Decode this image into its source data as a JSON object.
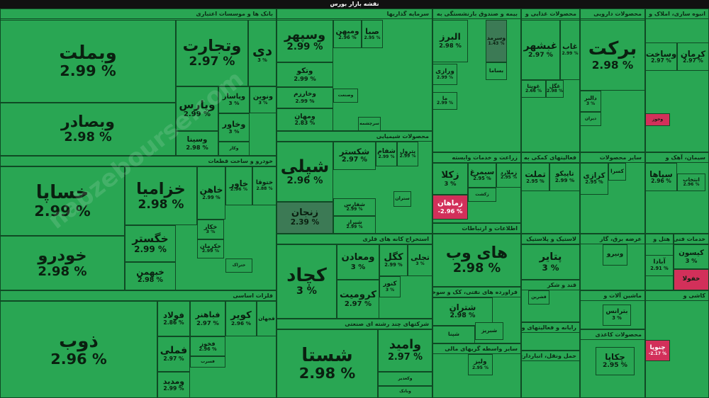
{
  "title": "نقشه بازار بورس",
  "watermark": "nabzebourse.com",
  "sectors": [
    {
      "name": "بانک ها و موسسات اعتباری",
      "tiles": [
        {
          "name": "وبملت",
          "change": "2.99 %"
        },
        {
          "name": "وبصادر",
          "change": "2.98 %"
        },
        {
          "name": "وتجارت",
          "change": "2.97 %"
        },
        {
          "name": "دی",
          "change": "3 %"
        },
        {
          "name": "وپارس",
          "change": "2.99 %"
        },
        {
          "name": "وپاسار",
          "change": "3 %"
        },
        {
          "name": "ونوین",
          "change": "3 %"
        },
        {
          "name": "وخاور",
          "change": "3 %"
        },
        {
          "name": "وسینا",
          "change": "2.98 %"
        },
        {
          "name": "وکار"
        }
      ]
    },
    {
      "name": "خودرو و ساخت قطعات",
      "tiles": [
        {
          "name": "خساپا",
          "change": "2.99 %"
        },
        {
          "name": "خودرو",
          "change": "2.98 %"
        },
        {
          "name": "خزامیا",
          "change": "2.98 %"
        },
        {
          "name": "خگستر",
          "change": "2.99 %"
        },
        {
          "name": "خبهمن",
          "change": "2.98 %"
        },
        {
          "name": "خاهن",
          "change": "2.99 %"
        },
        {
          "name": "خاور",
          "change": "2.96 %"
        },
        {
          "name": "ختوقا",
          "change": "2.88 %"
        },
        {
          "name": "خکار",
          "change": "3 %"
        },
        {
          "name": "خکرمان",
          "change": "2.99 %"
        },
        {
          "name": "ختراک"
        }
      ]
    },
    {
      "name": "فلزات اساسی",
      "tiles": [
        {
          "name": "ذوب",
          "change": "2.96 %"
        },
        {
          "name": "فولاد",
          "change": "2.86 %"
        },
        {
          "name": "فباهنر",
          "change": "2.97 %"
        },
        {
          "name": "کویر",
          "change": "2.96 %"
        },
        {
          "name": "فجهان"
        },
        {
          "name": "فملی",
          "change": "2.97 %"
        },
        {
          "name": "فخوز",
          "change": "2.96 %"
        },
        {
          "name": "فسرب"
        },
        {
          "name": "ومدید",
          "change": "2.99 %"
        }
      ]
    },
    {
      "name": "سرمایه گذاریها",
      "tiles": [
        {
          "name": "وسپهر",
          "change": "2.99 %"
        },
        {
          "name": "ومیهن",
          "change": "2.96 %"
        },
        {
          "name": "صبا",
          "change": "2.95 %"
        },
        {
          "name": "وتکو",
          "change": "2.99 %"
        },
        {
          "name": "وخارزم",
          "change": "2.99 %"
        },
        {
          "name": "ومهان",
          "change": "2.83 %"
        },
        {
          "name": "وصنعت"
        },
        {
          "name": "سرچشمه"
        }
      ]
    },
    {
      "name": "محصولات شیمیایی",
      "tiles": [
        {
          "name": "شپلی",
          "change": "2.96 %"
        },
        {
          "name": "زنجان",
          "change": "2.39 %"
        },
        {
          "name": "شکستر",
          "change": "2.97 %"
        },
        {
          "name": "شفارس",
          "change": "2.99 %"
        },
        {
          "name": "شیراز",
          "change": "2.99 %"
        },
        {
          "name": "شفام",
          "change": "2.99 %"
        },
        {
          "name": "پترول",
          "change": "2.99 %"
        },
        {
          "name": "ستران"
        }
      ]
    },
    {
      "name": "استخراج کانه های فلزی",
      "tiles": [
        {
          "name": "کچاد",
          "change": "3 %"
        },
        {
          "name": "ومعادن",
          "change": "3 %"
        },
        {
          "name": "کگل",
          "change": "2.99 %"
        },
        {
          "name": "کرومیت",
          "change": "2.97 %"
        },
        {
          "name": "تجلی",
          "change": "3 %"
        },
        {
          "name": "کنور",
          "change": "3 %"
        }
      ]
    },
    {
      "name": "شرکتهای چند رشته ای صنعتی",
      "tiles": [
        {
          "name": "شستا",
          "change": "2.98 %"
        },
        {
          "name": "وامید",
          "change": "2.97 %"
        },
        {
          "name": "وکغدیر"
        },
        {
          "name": "وبانک"
        }
      ]
    },
    {
      "name": "بیمه و صندوق بازنشستگی به",
      "tiles": [
        {
          "name": "البرز",
          "change": "2.98 %"
        },
        {
          "name": "وسرمد",
          "change": "1.43 %"
        },
        {
          "name": "ورازی",
          "change": "2.99 %"
        },
        {
          "name": "ما",
          "change": "2.99 %"
        },
        {
          "name": "بساما"
        }
      ]
    },
    {
      "name": "زراعت و خدمات وابسته",
      "tiles": [
        {
          "name": "زکلا",
          "change": "3 %"
        },
        {
          "name": "سیمرغ",
          "change": "2.95 %"
        },
        {
          "name": "زملارد",
          "change": "2.95 %"
        },
        {
          "name": "زماهان",
          "change": "-2.96 %"
        },
        {
          "name": "زکشت"
        }
      ]
    },
    {
      "name": "اطلاعات و ارتباطات",
      "tiles": [
        {
          "name": "های وب",
          "change": "2.98 %"
        }
      ]
    },
    {
      "name": "فراورده های نفتی، کک و سوخت",
      "tiles": [
        {
          "name": "شتران",
          "change": "2.98 %"
        },
        {
          "name": "شپنا"
        },
        {
          "name": "شبریز"
        }
      ]
    },
    {
      "name": "سایر واسطه گریهای مالی",
      "tiles": [
        {
          "name": "ولیز",
          "change": "2.95 %"
        }
      ]
    },
    {
      "name": "محصولات غذایی و",
      "tiles": [
        {
          "name": "غبشهر",
          "change": "2.97 %"
        },
        {
          "name": "غاب",
          "change": "2.99 %"
        },
        {
          "name": "غویتا",
          "change": "2.66 %"
        },
        {
          "name": "غگل",
          "change": "2.98 %"
        }
      ]
    },
    {
      "name": "فعالیتهای کمکی به",
      "tiles": [
        {
          "name": "تملت",
          "change": "2.95 %"
        },
        {
          "name": "تاپیکو",
          "change": "2.99 %"
        }
      ]
    },
    {
      "name": "لاستیک و پلاستیک",
      "tiles": [
        {
          "name": "پتایر",
          "change": "3 %"
        }
      ]
    },
    {
      "name": "قند و شکر",
      "tiles": [
        {
          "name": "قشرین"
        }
      ]
    },
    {
      "name": "رایانه و فعالیتهای وابسته",
      "tiles": []
    },
    {
      "name": "حمل ونقل، انبارداری و",
      "tiles": []
    },
    {
      "name": "محصولات دارویی",
      "tiles": [
        {
          "name": "برکت",
          "change": "2.98 %"
        },
        {
          "name": "دالبر",
          "change": "3 %"
        },
        {
          "name": "دیران"
        }
      ]
    },
    {
      "name": "سایر محصولات",
      "tiles": [
        {
          "name": "کرازی",
          "change": "2.95 %"
        },
        {
          "name": "کسرا"
        }
      ]
    },
    {
      "name": "عرضه برق، گاز",
      "tiles": [
        {
          "name": "ونیرو"
        }
      ]
    },
    {
      "name": "ماشین آلات و",
      "tiles": [
        {
          "name": "بترانس",
          "change": "3 %"
        }
      ]
    },
    {
      "name": "محصولات کاغذی",
      "tiles": [
        {
          "name": "چکاپا",
          "change": "2.95 %"
        }
      ]
    },
    {
      "name": "انبوه سازی، املاک و",
      "tiles": [
        {
          "name": "وساخت",
          "change": "2.97 %"
        },
        {
          "name": "کرمان",
          "change": "2.97 %"
        },
        {
          "name": "وخوز",
          "color": "#d2305a"
        }
      ]
    },
    {
      "name": "سیمان، آهک و",
      "tiles": [
        {
          "name": "سپاها",
          "change": "2.96 %"
        },
        {
          "name": "انتخاب",
          "change": "2.96 %"
        }
      ]
    },
    {
      "name": "هتل و",
      "tiles": [
        {
          "name": "آبادا",
          "change": "2.91 %"
        }
      ]
    },
    {
      "name": "خدمات فنی",
      "tiles": [
        {
          "name": "کیسون",
          "change": "3 %"
        },
        {
          "name": "خفولا",
          "color": "#d2305a"
        }
      ]
    },
    {
      "name": "کاشی و",
      "tiles": [
        {
          "name": "چنوپا",
          "change": "-2.17 %"
        }
      ]
    }
  ]
}
